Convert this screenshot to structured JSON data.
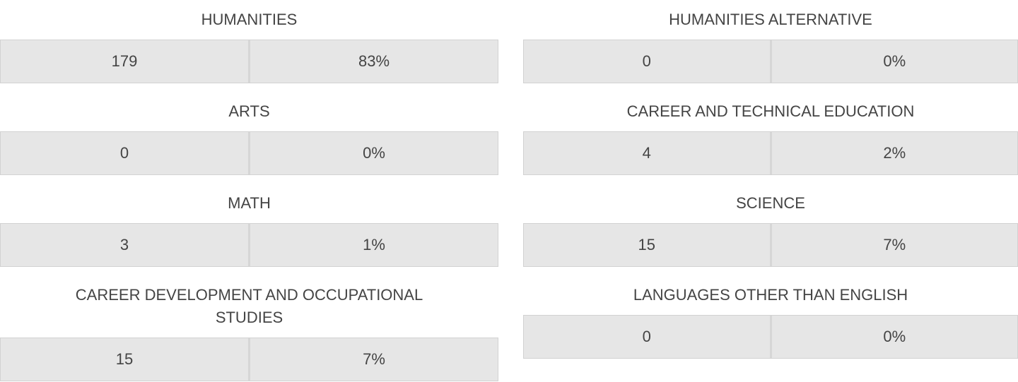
{
  "columns": [
    {
      "sections": [
        {
          "title": "HUMANITIES",
          "count": 179,
          "percent": "83%"
        },
        {
          "title": "ARTS",
          "count": 0,
          "percent": "0%"
        },
        {
          "title": "MATH",
          "count": 3,
          "percent": "1%"
        },
        {
          "title": "CAREER DEVELOPMENT AND OCCUPATIONAL STUDIES",
          "count": 15,
          "percent": "7%"
        }
      ]
    },
    {
      "sections": [
        {
          "title": "HUMANITIES ALTERNATIVE",
          "count": 0,
          "percent": "0%"
        },
        {
          "title": "CAREER AND TECHNICAL EDUCATION",
          "count": 4,
          "percent": "2%"
        },
        {
          "title": "SCIENCE",
          "count": 15,
          "percent": "7%"
        },
        {
          "title": "LANGUAGES OTHER THAN ENGLISH",
          "count": 0,
          "percent": "0%"
        }
      ]
    }
  ]
}
